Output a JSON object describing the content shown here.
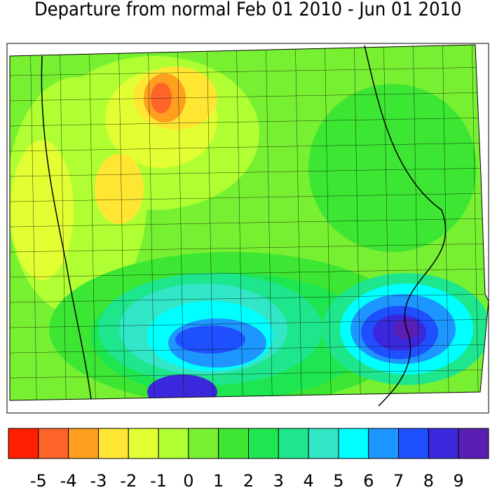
{
  "title": "Departure from normal Feb 01 2010 - Jun 01 2010",
  "legend": {
    "labels": [
      -5,
      -4,
      -3,
      -2,
      -1,
      0,
      1,
      2,
      3,
      4,
      5,
      6,
      7,
      8,
      9
    ],
    "colors": [
      "#ff1e00",
      "#ff6428",
      "#ff9f1e",
      "#ffe632",
      "#e1ff32",
      "#afff32",
      "#78f032",
      "#3ce632",
      "#1ee650",
      "#1ee68c",
      "#32e6c8",
      "#00ffff",
      "#1e96ff",
      "#1e50ff",
      "#3c28dc",
      "#5a1eb4"
    ]
  }
}
